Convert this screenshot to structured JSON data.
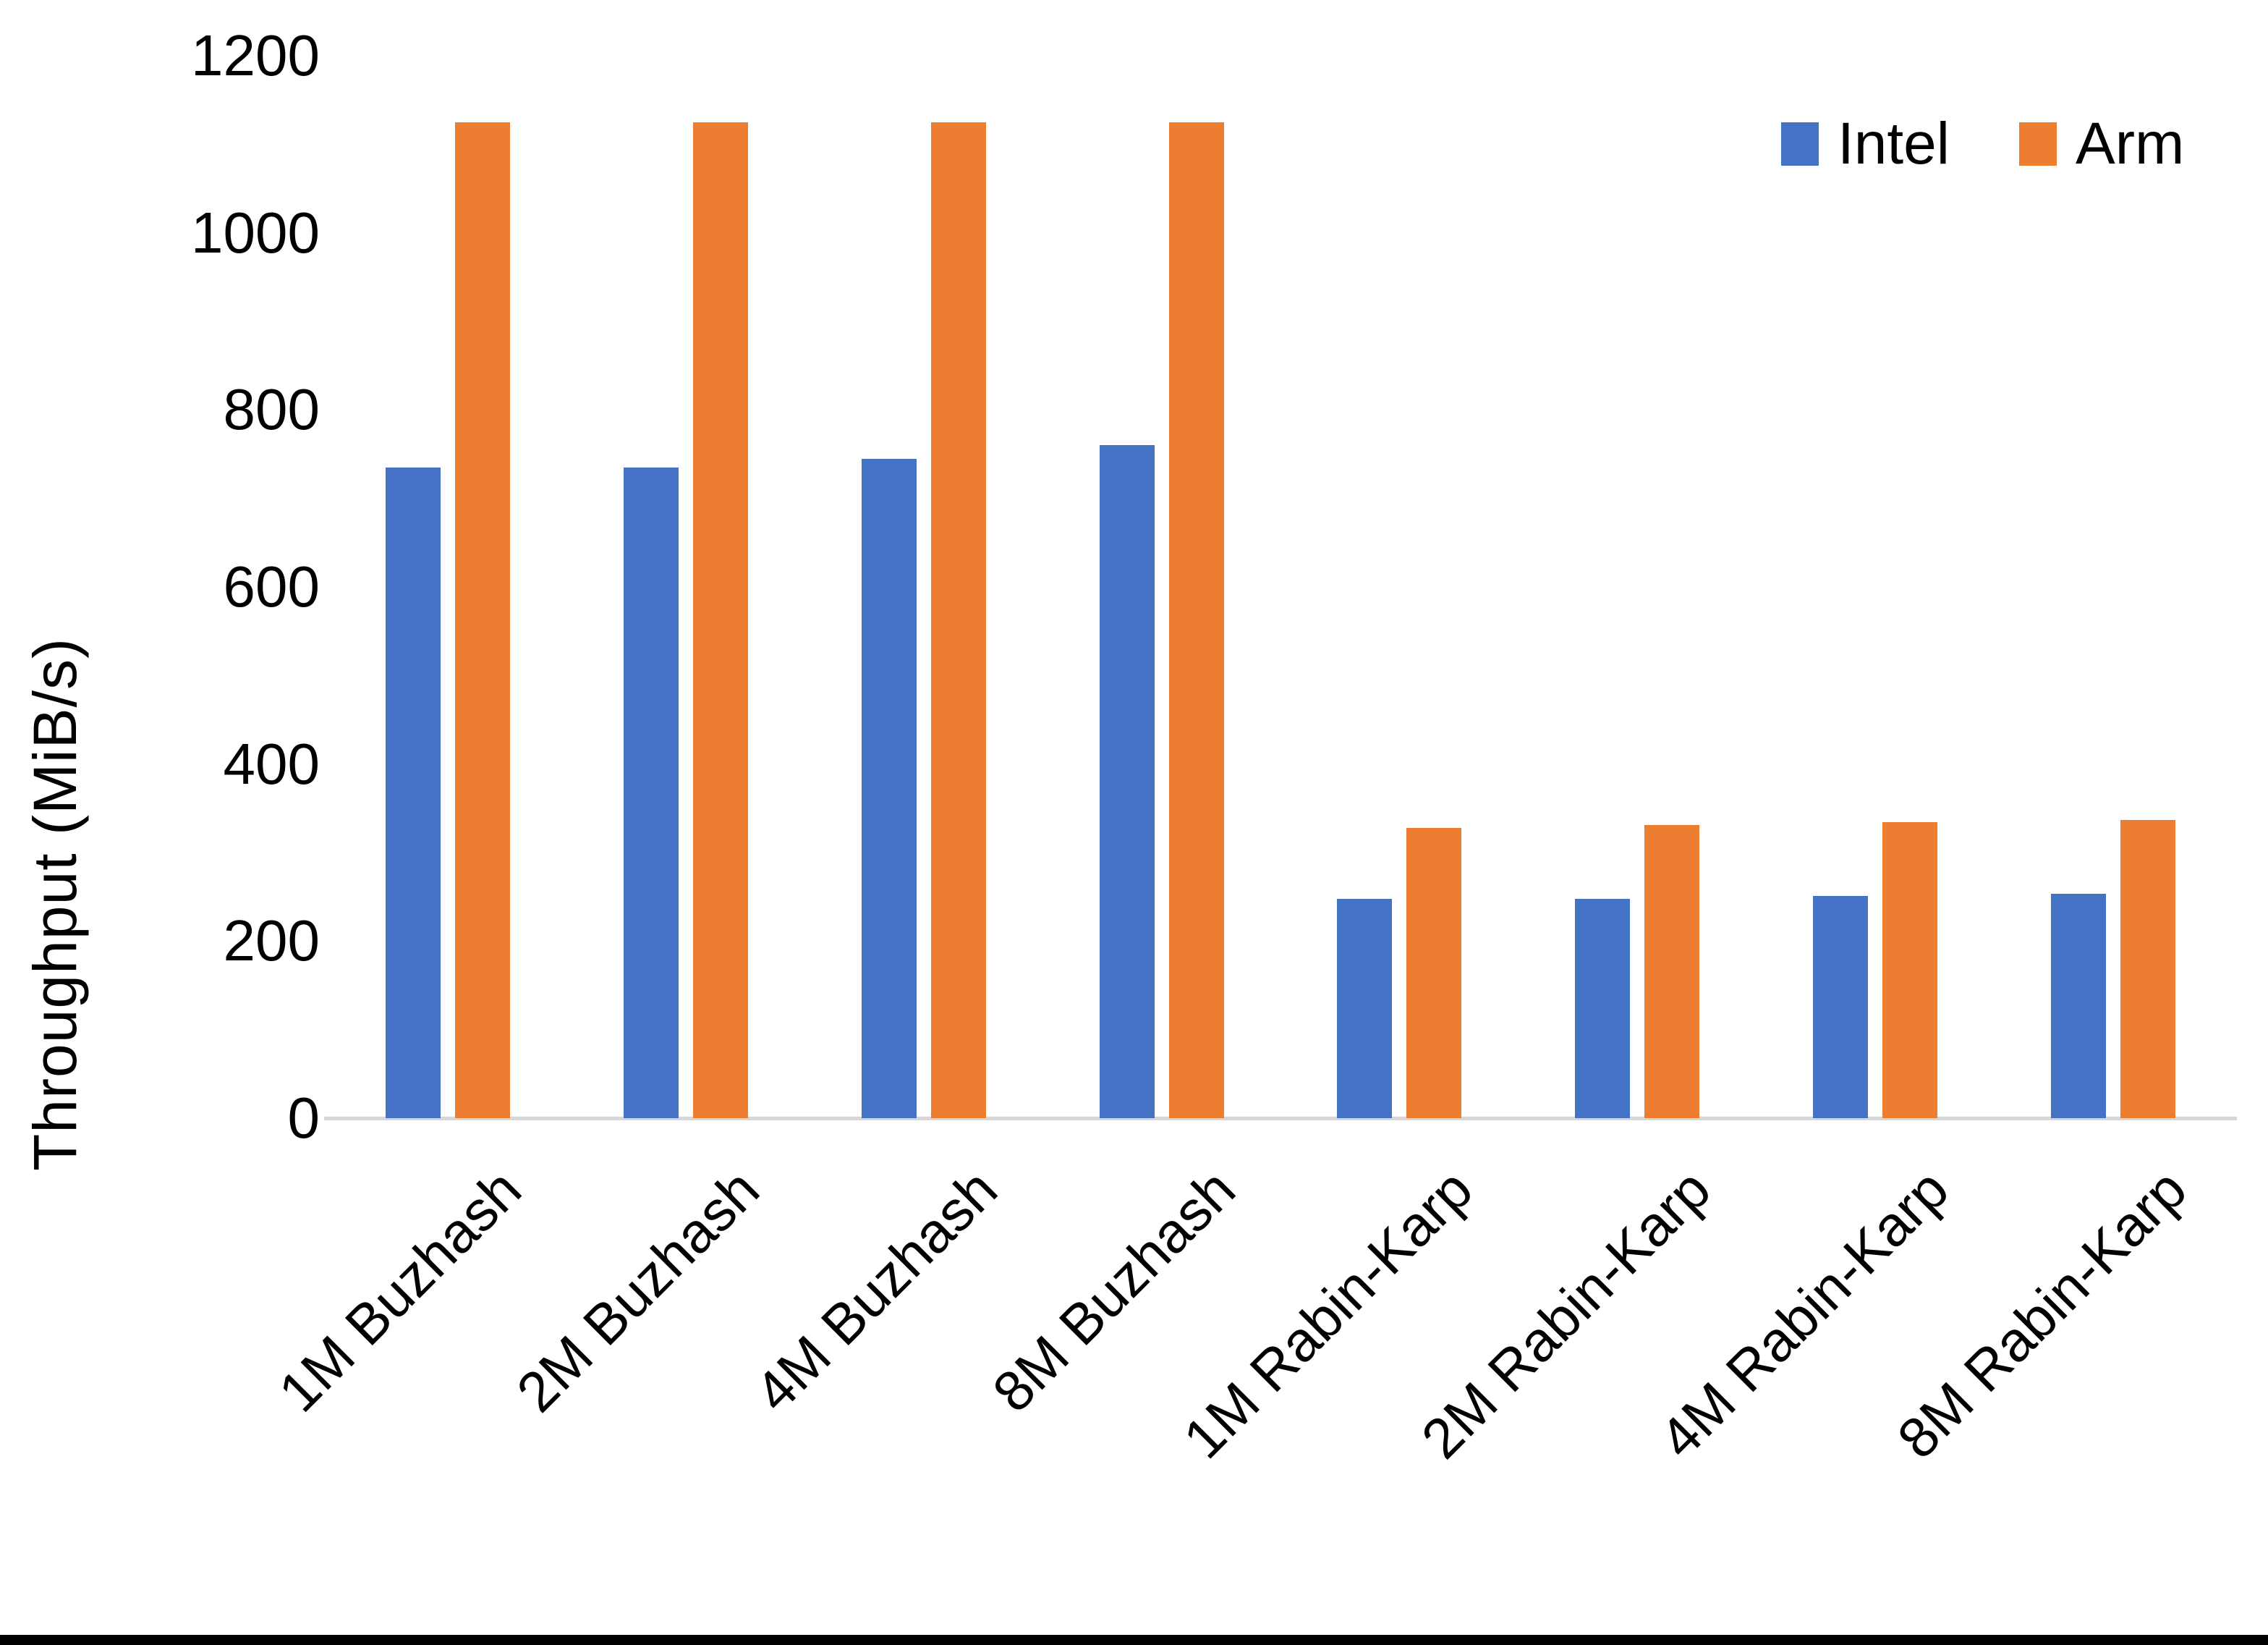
{
  "chart_data": {
    "type": "bar",
    "title": "",
    "xlabel": "",
    "ylabel": "Throughput (MiB/s)",
    "ylim": [
      0,
      1200
    ],
    "yticks": [
      0,
      200,
      400,
      600,
      800,
      1000,
      1200
    ],
    "grid": false,
    "legend_position": "top-right",
    "categories": [
      "1M Buzhash",
      "2M Buzhash",
      "4M Buzhash",
      "8M Buzhash",
      "1M Rabin-Karp",
      "2M Rabin-Karp",
      "4M Rabin-Karp",
      "8M Rabin-Karp"
    ],
    "series": [
      {
        "name": "Intel",
        "color": "#4472C4",
        "values": [
          735,
          735,
          745,
          760,
          248,
          248,
          251,
          253
        ]
      },
      {
        "name": "Arm",
        "color": "#ED7D31",
        "values": [
          1125,
          1125,
          1125,
          1125,
          328,
          331,
          334,
          337
        ]
      }
    ]
  },
  "colors": {
    "background": "#ffffff",
    "axis_line": "#d6d6d6",
    "text": "#000000",
    "bottom_border": "#000000"
  }
}
